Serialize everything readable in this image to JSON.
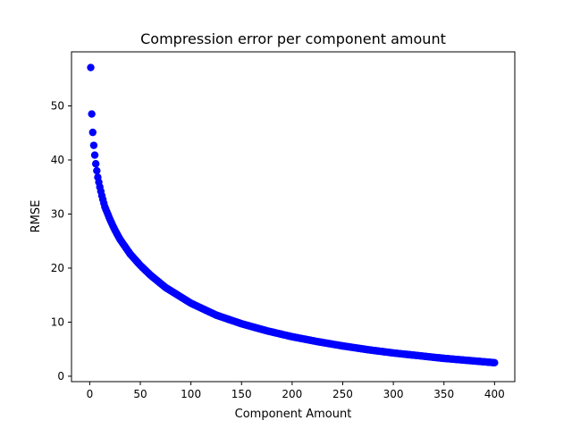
{
  "chart_data": {
    "type": "scatter",
    "title": "Compression error per component amount",
    "xlabel": "Component Amount",
    "ylabel": "RMSE",
    "xlim": [
      -18,
      420
    ],
    "ylim": [
      -1,
      60
    ],
    "xticks": [
      0,
      50,
      100,
      150,
      200,
      250,
      300,
      350,
      400
    ],
    "yticks": [
      0,
      10,
      20,
      30,
      40,
      50
    ],
    "grid": false,
    "marker_color": "#0000ff",
    "series": [
      {
        "name": "",
        "x_range": [
          1,
          400
        ],
        "points": [
          {
            "x": 1,
            "y": 57.1
          },
          {
            "x": 2,
            "y": 48.5
          },
          {
            "x": 3,
            "y": 45.1
          },
          {
            "x": 4,
            "y": 42.7
          },
          {
            "x": 5,
            "y": 40.9
          },
          {
            "x": 6,
            "y": 39.3
          },
          {
            "x": 7,
            "y": 38.0
          },
          {
            "x": 8,
            "y": 36.8
          },
          {
            "x": 10,
            "y": 35.0
          },
          {
            "x": 12,
            "y": 33.4
          },
          {
            "x": 15,
            "y": 31.3
          },
          {
            "x": 20,
            "y": 29.0
          },
          {
            "x": 25,
            "y": 27.0
          },
          {
            "x": 30,
            "y": 25.3
          },
          {
            "x": 40,
            "y": 22.6
          },
          {
            "x": 50,
            "y": 20.5
          },
          {
            "x": 60,
            "y": 18.7
          },
          {
            "x": 75,
            "y": 16.4
          },
          {
            "x": 100,
            "y": 13.5
          },
          {
            "x": 125,
            "y": 11.3
          },
          {
            "x": 150,
            "y": 9.7
          },
          {
            "x": 175,
            "y": 8.4
          },
          {
            "x": 200,
            "y": 7.3
          },
          {
            "x": 225,
            "y": 6.4
          },
          {
            "x": 250,
            "y": 5.6
          },
          {
            "x": 275,
            "y": 4.9
          },
          {
            "x": 300,
            "y": 4.3
          },
          {
            "x": 325,
            "y": 3.8
          },
          {
            "x": 350,
            "y": 3.3
          },
          {
            "x": 375,
            "y": 2.9
          },
          {
            "x": 400,
            "y": 2.5
          }
        ]
      }
    ]
  }
}
